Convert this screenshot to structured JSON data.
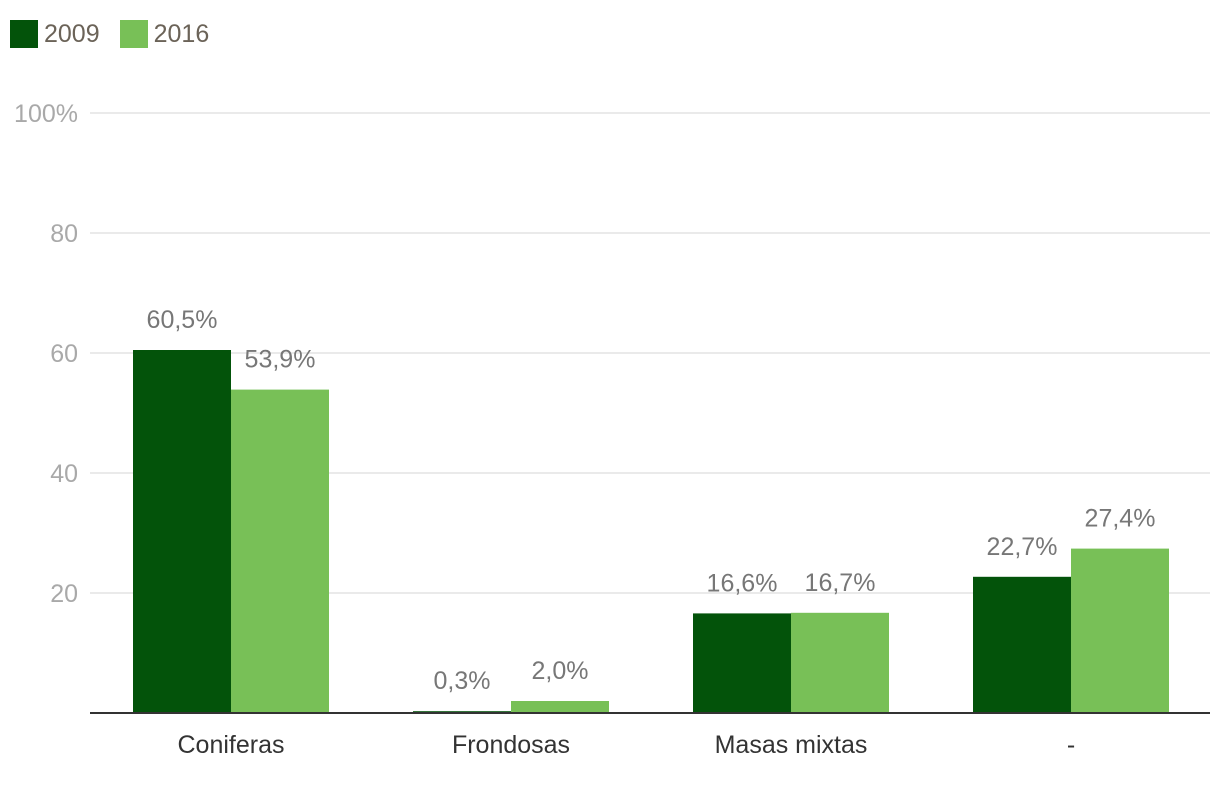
{
  "chart_data": {
    "type": "bar",
    "categories": [
      "Coniferas",
      "Frondosas",
      "Masas mixtas",
      "-"
    ],
    "series": [
      {
        "name": "2009",
        "color": "#03530a",
        "values": [
          60.5,
          0.3,
          16.6,
          22.7
        ],
        "labels": [
          "60,5%",
          "0,3%",
          "16,6%",
          "22,7%"
        ]
      },
      {
        "name": "2016",
        "color": "#78c057",
        "values": [
          53.9,
          2.0,
          16.7,
          27.4
        ],
        "labels": [
          "53,9%",
          "2,0%",
          "16,7%",
          "27,4%"
        ]
      }
    ],
    "ylim": [
      0,
      100
    ],
    "yticks": [
      {
        "value": 20,
        "label": "20"
      },
      {
        "value": 40,
        "label": "40"
      },
      {
        "value": 60,
        "label": "60"
      },
      {
        "value": 80,
        "label": "80"
      },
      {
        "value": 100,
        "label": "100%"
      }
    ],
    "grid": true,
    "legend_position": "top-left"
  }
}
